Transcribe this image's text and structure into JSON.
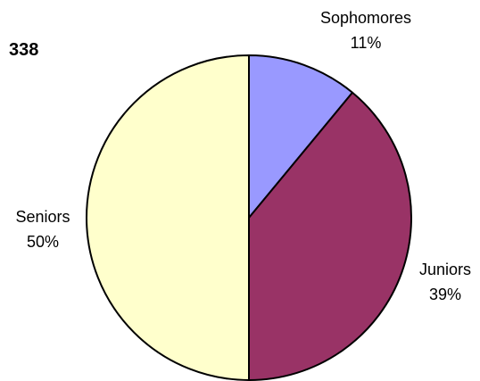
{
  "chart_data": {
    "type": "pie",
    "count": "338",
    "slices": [
      {
        "label": "Sophomores",
        "value": 11,
        "display": "11%",
        "color": "#9999ff"
      },
      {
        "label": "Juniors",
        "value": 39,
        "display": "39%",
        "color": "#993366"
      },
      {
        "label": "Seniors",
        "value": 50,
        "display": "50%",
        "color": "#ffffcc"
      }
    ],
    "start_angle": "12 o'clock",
    "direction": "clockwise",
    "legend": "none"
  }
}
